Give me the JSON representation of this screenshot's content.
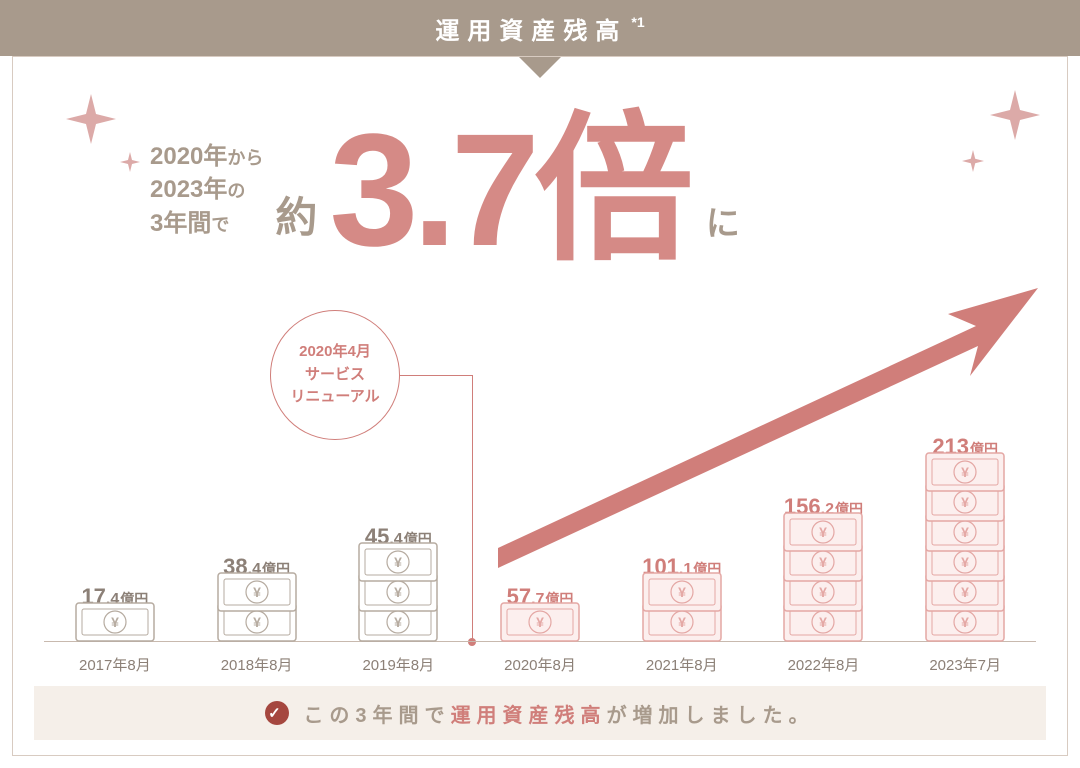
{
  "header": {
    "title": "運用資産残高",
    "sup": "*1"
  },
  "headline": {
    "line1_a": "2020年",
    "line1_b": "から",
    "line2_a": "2023年",
    "line2_b": "の",
    "line3_a": "3年間",
    "line3_b": "で",
    "approx": "約",
    "big": "3.7倍",
    "ni": "に"
  },
  "annotation": {
    "l1": "2020年4月",
    "l2": "サービス",
    "l3": "リニューアル"
  },
  "chart": {
    "type": "bar",
    "colors": {
      "gray_line": "#b6aba0",
      "gray_fill": "#ffffff",
      "pink_line": "#e4a7a4",
      "pink_fill": "#fcefee",
      "accent": "#d07e7a",
      "axis": "#c8b9ae"
    },
    "bill_width": 80,
    "bill_height": 40,
    "bill_overlap": 10,
    "bars": [
      {
        "label": "2017年8月",
        "value_int": "17",
        "value_dec": ".4",
        "unit": "億円",
        "bills": 1,
        "style": "gray"
      },
      {
        "label": "2018年8月",
        "value_int": "38",
        "value_dec": ".4",
        "unit": "億円",
        "bills": 2,
        "style": "gray"
      },
      {
        "label": "2019年8月",
        "value_int": "45",
        "value_dec": ".4",
        "unit": "億円",
        "bills": 3,
        "style": "gray"
      },
      {
        "label": "2020年8月",
        "value_int": "57",
        "value_dec": ".7",
        "unit": "億円",
        "bills": 1,
        "style": "pink"
      },
      {
        "label": "2021年8月",
        "value_int": "101",
        "value_dec": ".1",
        "unit": "億円",
        "bills": 2,
        "style": "pink"
      },
      {
        "label": "2022年8月",
        "value_int": "156",
        "value_dec": ".2",
        "unit": "億円",
        "bills": 4,
        "style": "pink"
      },
      {
        "label": "2023年7月",
        "value_int": "213",
        "value_dec": "",
        "unit": "億円",
        "bills": 6,
        "style": "pink"
      }
    ]
  },
  "footer": {
    "pre": "この3年間で",
    "hl": "運用資産残高",
    "post": "が増加しました。"
  },
  "sparkle_color": "#dcaaa8"
}
